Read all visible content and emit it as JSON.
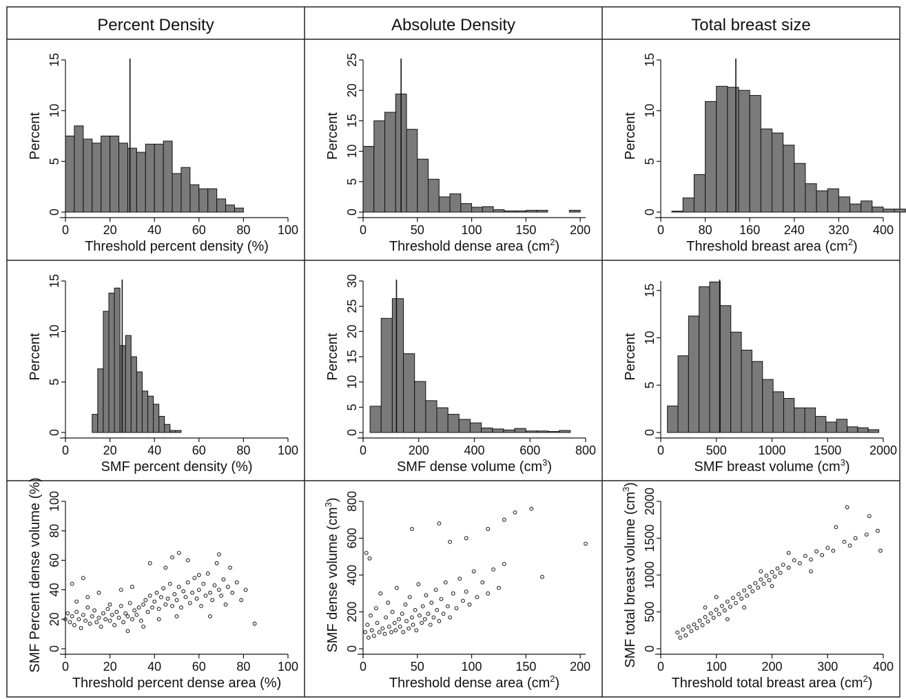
{
  "headers": [
    "Percent Density",
    "Absolute Density",
    "Total breast size"
  ],
  "chart_data": [
    {
      "type": "bar",
      "row": 0,
      "col": 0,
      "xlabel": "Threshold percent density (%)",
      "ylabel": "Percent",
      "xlim": [
        0,
        100
      ],
      "ylim": [
        0,
        15
      ],
      "xticks": [
        0,
        20,
        40,
        60,
        80,
        100
      ],
      "yticks": [
        0,
        5,
        10,
        15
      ],
      "bin_start": 0,
      "bin_width": 4,
      "values": [
        7.5,
        8.5,
        7.2,
        6.8,
        7.5,
        7.5,
        6.8,
        6.3,
        5.9,
        6.7,
        6.7,
        7.0,
        3.8,
        4.4,
        2.7,
        2.3,
        2.3,
        1.3,
        0.7,
        0.4,
        0.0,
        0.0
      ],
      "mean_line": 29
    },
    {
      "type": "bar",
      "row": 0,
      "col": 1,
      "xlabel": "Threshold dense area (cm",
      "xlabel_sup": "2",
      "xlabel_end": ")",
      "ylabel": "Percent",
      "xlim": [
        0,
        205
      ],
      "ylim": [
        0,
        25
      ],
      "xticks": [
        0,
        50,
        100,
        150,
        200
      ],
      "yticks": [
        0,
        5,
        10,
        15,
        20,
        25
      ],
      "bin_start": 0,
      "bin_width": 10,
      "values": [
        10.8,
        15.0,
        16.4,
        19.4,
        13.6,
        8.7,
        5.4,
        2.5,
        3.0,
        1.4,
        0.8,
        0.9,
        0.4,
        0.2,
        0.2,
        0.3,
        0.3,
        0.0,
        0.0,
        0.3
      ],
      "mean_line": 35
    },
    {
      "type": "bar",
      "row": 0,
      "col": 2,
      "xlabel": "Threshold breast area (cm",
      "xlabel_sup": "2",
      "xlabel_end": ")",
      "ylabel": "Percent",
      "xlim": [
        0,
        400
      ],
      "ylim": [
        0,
        15
      ],
      "xticks": [
        0,
        80,
        160,
        240,
        320,
        400
      ],
      "yticks": [
        0,
        5,
        10,
        15
      ],
      "bin_start": 20,
      "bin_width": 20,
      "values": [
        0.1,
        1.4,
        3.7,
        10.9,
        12.4,
        12.3,
        12.0,
        11.5,
        8.2,
        7.8,
        6.6,
        4.8,
        2.8,
        2.1,
        2.3,
        1.5,
        0.8,
        1.1,
        0.5,
        0.3,
        0.3
      ],
      "mean_line": 135
    },
    {
      "type": "bar",
      "row": 1,
      "col": 0,
      "xlabel": "SMF percent density (%)",
      "ylabel": "Percent",
      "xlim": [
        0,
        100
      ],
      "ylim": [
        0,
        15
      ],
      "xticks": [
        0,
        20,
        40,
        60,
        80,
        100
      ],
      "yticks": [
        0,
        5,
        10,
        15
      ],
      "bin_start": 12,
      "bin_width": 2.5,
      "values": [
        1.8,
        6.3,
        12.0,
        13.8,
        14.3,
        8.6,
        9.6,
        7.5,
        6.0,
        4.1,
        3.6,
        2.8,
        1.6,
        0.8,
        0.2,
        0.2
      ],
      "mean_line": 25.5
    },
    {
      "type": "bar",
      "row": 1,
      "col": 1,
      "xlabel": "SMF dense volume (cm",
      "xlabel_sup": "3",
      "xlabel_end": ")",
      "ylabel": "Percent",
      "xlim": [
        0,
        800
      ],
      "ylim": [
        0,
        30
      ],
      "xticks": [
        0,
        200,
        400,
        600,
        800
      ],
      "yticks": [
        0,
        5,
        10,
        15,
        20,
        25,
        30
      ],
      "bin_start": 25,
      "bin_width": 40,
      "values": [
        5.2,
        22.6,
        26.5,
        15.6,
        10.1,
        6.3,
        4.9,
        3.6,
        2.6,
        1.9,
        0.9,
        0.7,
        0.5,
        0.8,
        0.3,
        0.3,
        0.2,
        0.4
      ],
      "mean_line": 120
    },
    {
      "type": "bar",
      "row": 1,
      "col": 2,
      "xlabel": "SMF breast volume (cm",
      "xlabel_sup": "3",
      "xlabel_end": ")",
      "ylabel": "Percent",
      "xlim": [
        0,
        2000
      ],
      "ylim": [
        0,
        16
      ],
      "xticks": [
        0,
        500,
        1000,
        1500,
        2000
      ],
      "yticks": [
        0,
        5,
        10,
        15
      ],
      "bin_start": 60,
      "bin_width": 95,
      "values": [
        2.8,
        8.1,
        12.3,
        15.4,
        15.9,
        13.4,
        10.6,
        8.7,
        7.5,
        5.6,
        4.3,
        3.6,
        2.6,
        2.6,
        1.7,
        1.1,
        1.4,
        0.6,
        0.5,
        0.3
      ],
      "mean_line": 530
    },
    {
      "type": "scatter",
      "row": 2,
      "col": 0,
      "xlabel": "Threshold percent dense area (%)",
      "ylabel": "SMF Percent dense volume (%)",
      "xlim": [
        0,
        100
      ],
      "ylim": [
        0,
        100
      ],
      "xticks": [
        0,
        20,
        40,
        60,
        80,
        100
      ],
      "yticks": [
        0,
        20,
        40,
        60,
        80,
        100
      ],
      "points": [
        [
          0,
          20
        ],
        [
          1,
          24
        ],
        [
          2,
          18
        ],
        [
          3,
          22
        ],
        [
          4,
          16
        ],
        [
          5,
          25
        ],
        [
          6,
          20
        ],
        [
          7,
          14
        ],
        [
          8,
          23
        ],
        [
          9,
          19
        ],
        [
          10,
          28
        ],
        [
          11,
          17
        ],
        [
          12,
          22
        ],
        [
          13,
          26
        ],
        [
          14,
          18
        ],
        [
          15,
          21
        ],
        [
          16,
          15
        ],
        [
          17,
          24
        ],
        [
          18,
          20
        ],
        [
          19,
          27
        ],
        [
          20,
          19
        ],
        [
          21,
          23
        ],
        [
          22,
          16
        ],
        [
          23,
          25
        ],
        [
          24,
          21
        ],
        [
          25,
          29
        ],
        [
          26,
          18
        ],
        [
          27,
          24
        ],
        [
          28,
          22
        ],
        [
          29,
          31
        ],
        [
          30,
          20
        ],
        [
          31,
          26
        ],
        [
          32,
          23
        ],
        [
          33,
          28
        ],
        [
          34,
          19
        ],
        [
          35,
          30
        ],
        [
          36,
          33
        ],
        [
          37,
          25
        ],
        [
          38,
          36
        ],
        [
          39,
          28
        ],
        [
          40,
          32
        ],
        [
          41,
          38
        ],
        [
          42,
          27
        ],
        [
          43,
          35
        ],
        [
          44,
          41
        ],
        [
          45,
          30
        ],
        [
          46,
          34
        ],
        [
          47,
          44
        ],
        [
          48,
          29
        ],
        [
          49,
          37
        ],
        [
          50,
          33
        ],
        [
          51,
          42
        ],
        [
          52,
          28
        ],
        [
          53,
          39
        ],
        [
          54,
          35
        ],
        [
          55,
          45
        ],
        [
          56,
          31
        ],
        [
          57,
          38
        ],
        [
          58,
          48
        ],
        [
          59,
          34
        ],
        [
          60,
          40
        ],
        [
          61,
          29
        ],
        [
          62,
          44
        ],
        [
          63,
          36
        ],
        [
          64,
          51
        ],
        [
          65,
          38
        ],
        [
          66,
          33
        ],
        [
          67,
          43
        ],
        [
          68,
          58
        ],
        [
          69,
          40
        ],
        [
          70,
          36
        ],
        [
          71,
          47
        ],
        [
          72,
          30
        ],
        [
          73,
          42
        ],
        [
          74,
          55
        ],
        [
          75,
          38
        ],
        [
          77,
          45
        ],
        [
          79,
          33
        ],
        [
          81,
          40
        ],
        [
          85,
          17
        ],
        [
          48,
          62
        ],
        [
          51,
          65
        ],
        [
          69,
          64
        ],
        [
          38,
          58
        ],
        [
          8,
          48
        ],
        [
          3,
          44
        ],
        [
          15,
          38
        ],
        [
          25,
          40
        ],
        [
          30,
          42
        ],
        [
          45,
          55
        ],
        [
          55,
          60
        ],
        [
          60,
          50
        ],
        [
          65,
          22
        ],
        [
          35,
          15
        ],
        [
          42,
          20
        ],
        [
          50,
          22
        ],
        [
          20,
          30
        ],
        [
          10,
          35
        ],
        [
          5,
          32
        ],
        [
          28,
          12
        ]
      ]
    },
    {
      "type": "scatter",
      "row": 2,
      "col": 1,
      "xlabel": "Threshold dense area (cm",
      "xlabel_sup": "2",
      "xlabel_end": ")",
      "ylabel": "SMF dense volume (cm",
      "ylabel_sup": "3",
      "ylabel_end": ")",
      "xlim": [
        0,
        205
      ],
      "ylim": [
        0,
        800
      ],
      "xticks": [
        0,
        50,
        100,
        150,
        200
      ],
      "yticks": [
        0,
        200,
        400,
        600,
        800
      ],
      "points": [
        [
          2,
          90
        ],
        [
          4,
          130
        ],
        [
          5,
          60
        ],
        [
          7,
          180
        ],
        [
          8,
          100
        ],
        [
          10,
          70
        ],
        [
          12,
          220
        ],
        [
          13,
          140
        ],
        [
          15,
          90
        ],
        [
          16,
          300
        ],
        [
          18,
          110
        ],
        [
          20,
          80
        ],
        [
          21,
          170
        ],
        [
          23,
          250
        ],
        [
          24,
          120
        ],
        [
          26,
          90
        ],
        [
          27,
          200
        ],
        [
          29,
          140
        ],
        [
          30,
          100
        ],
        [
          31,
          330
        ],
        [
          33,
          160
        ],
        [
          34,
          120
        ],
        [
          36,
          190
        ],
        [
          37,
          90
        ],
        [
          39,
          240
        ],
        [
          40,
          150
        ],
        [
          42,
          110
        ],
        [
          43,
          280
        ],
        [
          45,
          170
        ],
        [
          46,
          130
        ],
        [
          48,
          210
        ],
        [
          49,
          100
        ],
        [
          51,
          350
        ],
        [
          52,
          180
        ],
        [
          54,
          140
        ],
        [
          55,
          230
        ],
        [
          57,
          160
        ],
        [
          58,
          290
        ],
        [
          60,
          190
        ],
        [
          62,
          130
        ],
        [
          63,
          250
        ],
        [
          65,
          170
        ],
        [
          67,
          320
        ],
        [
          68,
          210
        ],
        [
          70,
          150
        ],
        [
          72,
          270
        ],
        [
          74,
          190
        ],
        [
          76,
          360
        ],
        [
          78,
          230
        ],
        [
          80,
          170
        ],
        [
          83,
          300
        ],
        [
          86,
          220
        ],
        [
          89,
          380
        ],
        [
          92,
          260
        ],
        [
          95,
          310
        ],
        [
          98,
          240
        ],
        [
          102,
          420
        ],
        [
          105,
          280
        ],
        [
          110,
          360
        ],
        [
          115,
          300
        ],
        [
          120,
          430
        ],
        [
          125,
          330
        ],
        [
          130,
          460
        ],
        [
          3,
          520
        ],
        [
          6,
          490
        ],
        [
          45,
          650
        ],
        [
          70,
          680
        ],
        [
          80,
          580
        ],
        [
          95,
          600
        ],
        [
          115,
          650
        ],
        [
          130,
          700
        ],
        [
          140,
          740
        ],
        [
          155,
          760
        ],
        [
          165,
          390
        ],
        [
          205,
          570
        ]
      ]
    },
    {
      "type": "scatter",
      "row": 2,
      "col": 2,
      "xlabel": "Threshold total breast area (cm",
      "xlabel_sup": "2",
      "xlabel_end": ")",
      "ylabel": "SMF total breast volume (cm",
      "ylabel_sup": "3",
      "ylabel_end": ")",
      "xlim": [
        0,
        400
      ],
      "ylim": [
        0,
        2000
      ],
      "xticks": [
        0,
        100,
        200,
        300,
        400
      ],
      "yticks": [
        0,
        500,
        1000,
        1500,
        2000
      ],
      "points": [
        [
          30,
          220
        ],
        [
          35,
          150
        ],
        [
          40,
          260
        ],
        [
          45,
          180
        ],
        [
          50,
          300
        ],
        [
          55,
          240
        ],
        [
          60,
          330
        ],
        [
          65,
          280
        ],
        [
          70,
          380
        ],
        [
          75,
          320
        ],
        [
          80,
          430
        ],
        [
          85,
          370
        ],
        [
          90,
          480
        ],
        [
          95,
          420
        ],
        [
          100,
          530
        ],
        [
          105,
          470
        ],
        [
          110,
          580
        ],
        [
          115,
          520
        ],
        [
          120,
          640
        ],
        [
          125,
          570
        ],
        [
          130,
          690
        ],
        [
          135,
          620
        ],
        [
          140,
          740
        ],
        [
          145,
          680
        ],
        [
          150,
          790
        ],
        [
          155,
          720
        ],
        [
          160,
          840
        ],
        [
          165,
          780
        ],
        [
          170,
          890
        ],
        [
          175,
          830
        ],
        [
          180,
          940
        ],
        [
          185,
          880
        ],
        [
          190,
          990
        ],
        [
          195,
          930
        ],
        [
          200,
          1040
        ],
        [
          205,
          980
        ],
        [
          210,
          1090
        ],
        [
          215,
          1030
        ],
        [
          220,
          1140
        ],
        [
          230,
          1100
        ],
        [
          240,
          1200
        ],
        [
          250,
          1160
        ],
        [
          260,
          1260
        ],
        [
          270,
          1210
        ],
        [
          280,
          1320
        ],
        [
          290,
          1270
        ],
        [
          300,
          1370
        ],
        [
          310,
          1330
        ],
        [
          330,
          1450
        ],
        [
          340,
          1400
        ],
        [
          350,
          1500
        ],
        [
          370,
          1550
        ],
        [
          390,
          1600
        ],
        [
          335,
          1920
        ],
        [
          375,
          1800
        ],
        [
          395,
          1330
        ],
        [
          315,
          1650
        ],
        [
          270,
          1050
        ],
        [
          150,
          560
        ],
        [
          100,
          700
        ],
        [
          200,
          850
        ],
        [
          120,
          400
        ],
        [
          80,
          560
        ],
        [
          230,
          1300
        ],
        [
          180,
          1050
        ]
      ]
    }
  ]
}
